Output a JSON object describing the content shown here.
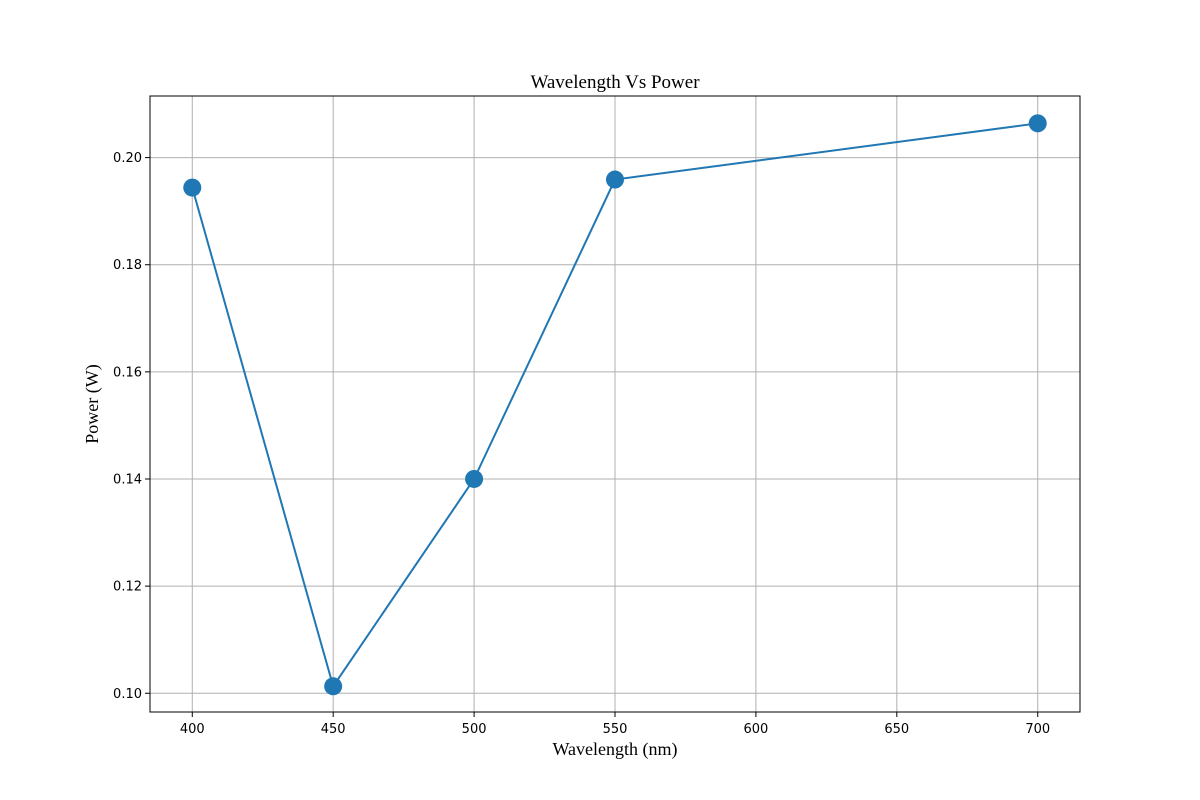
{
  "chart_data": {
    "type": "line",
    "title": "Wavelength Vs Power",
    "xlabel": "Wavelength (nm)",
    "ylabel": "Power (W)",
    "x": [
      400,
      450,
      500,
      550,
      700
    ],
    "series": [
      {
        "values": [
          0.1944,
          0.1013,
          0.14,
          0.1959,
          0.2064
        ]
      }
    ],
    "xlim": [
      385,
      715
    ],
    "ylim": [
      0.0965,
      0.2115
    ],
    "xticks": [
      400,
      450,
      500,
      550,
      600,
      650,
      700
    ],
    "xtick_labels": [
      "400",
      "450",
      "500",
      "550",
      "600",
      "650",
      "700"
    ],
    "yticks": [
      0.1,
      0.12,
      0.14,
      0.16,
      0.18,
      0.2
    ],
    "ytick_labels": [
      "0.10",
      "0.12",
      "0.14",
      "0.16",
      "0.18",
      "0.20"
    ],
    "grid": true,
    "marker": "circle",
    "color": "#1f77b4"
  }
}
